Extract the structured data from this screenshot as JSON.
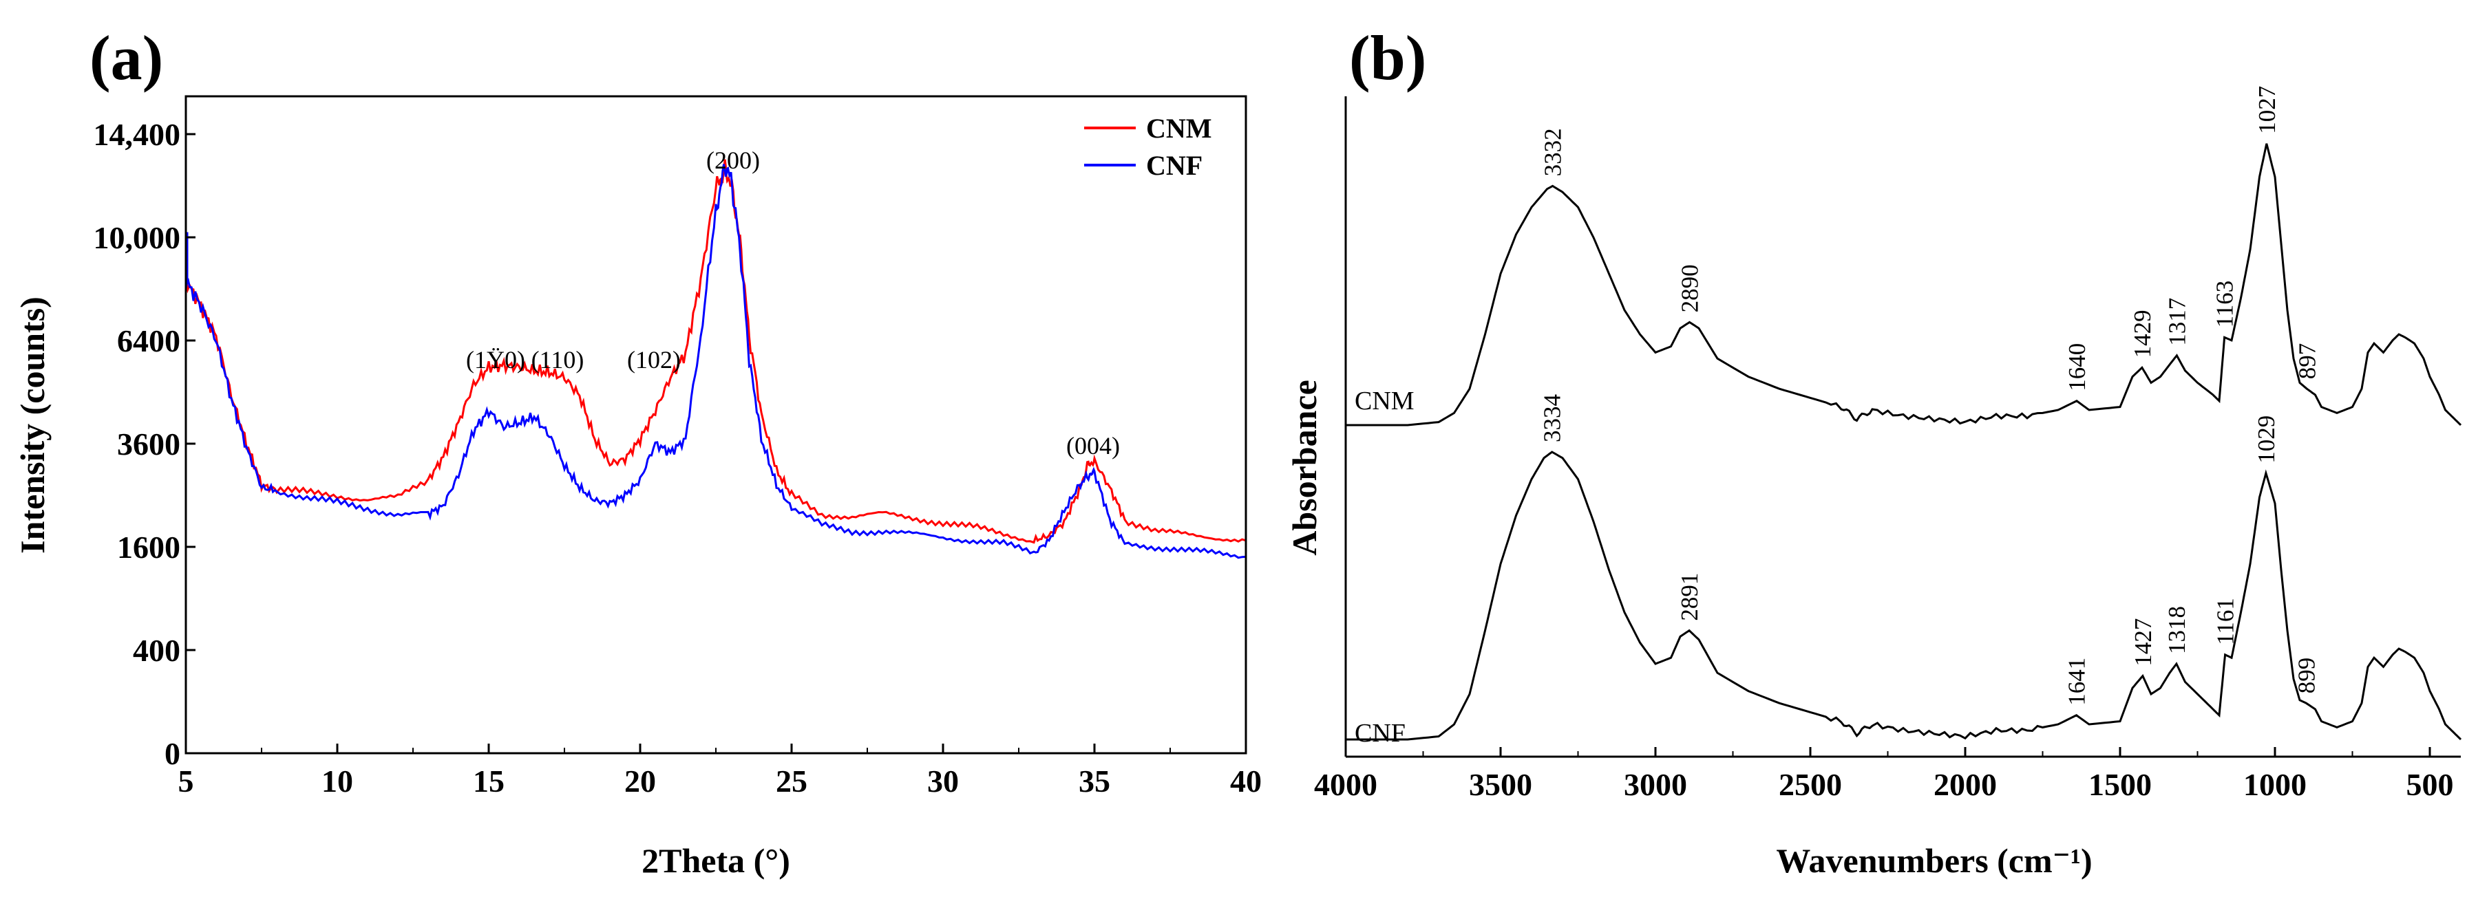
{
  "chart_data": [
    {
      "panel_label": "(a)",
      "type": "line",
      "title": "",
      "xlabel": "2Theta (°)",
      "ylabel": "Intensity (counts)",
      "xlim": [
        5,
        40
      ],
      "x_ticks": [
        5,
        10,
        15,
        20,
        25,
        30,
        35,
        40
      ],
      "y_scale": "sqrt",
      "y_ticks": [
        0,
        400,
        1600,
        3600,
        6400,
        10000,
        14400
      ],
      "y_tick_labels": [
        "0",
        "400",
        "1600",
        "3600",
        "6400",
        "10,000",
        "14,400"
      ],
      "grid": false,
      "legend_position": "top-right",
      "series": [
        {
          "name": "CNM",
          "color": "#ff0000",
          "x": [
            5,
            5.5,
            6,
            6.5,
            7,
            7.5,
            8,
            9,
            10,
            11,
            12,
            13,
            13.5,
            14,
            14.5,
            15,
            15.5,
            16,
            16.5,
            17,
            17.5,
            18,
            18.5,
            19,
            19.5,
            20,
            20.5,
            21,
            21.5,
            22,
            22.5,
            22.8,
            23,
            23.3,
            23.6,
            24,
            24.5,
            25,
            26,
            27,
            28,
            29,
            30,
            31,
            32,
            33,
            33.5,
            34,
            34.5,
            34.8,
            35,
            35.5,
            36,
            37,
            38,
            39,
            40
          ],
          "y": [
            8400,
            7500,
            6500,
            4800,
            3600,
            2700,
            2600,
            2550,
            2500,
            2420,
            2450,
            2800,
            3300,
            4100,
            5100,
            5600,
            5650,
            5600,
            5500,
            5450,
            5300,
            4800,
            3700,
            3150,
            3250,
            3700,
            4400,
            5300,
            6000,
            8400,
            12000,
            12800,
            12200,
            9800,
            6500,
            4300,
            3000,
            2500,
            2150,
            2100,
            2150,
            2080,
            2000,
            1920,
            1800,
            1700,
            1780,
            2000,
            2600,
            3150,
            3200,
            2650,
            2050,
            1850,
            1800,
            1750,
            1700
          ]
        },
        {
          "name": "CNF",
          "color": "#0000ff",
          "x": [
            5,
            5.5,
            6,
            6.5,
            7,
            7.5,
            8,
            9,
            10,
            11,
            12,
            13,
            13.5,
            14,
            14.5,
            15,
            15.5,
            16,
            16.5,
            17,
            17.5,
            18,
            18.5,
            19,
            19.5,
            20,
            20.5,
            21,
            21.5,
            22,
            22.5,
            22.8,
            23,
            23.3,
            23.6,
            24,
            24.5,
            25,
            26,
            27,
            28,
            29,
            30,
            31,
            32,
            33,
            33.5,
            34,
            34.5,
            34.8,
            35,
            35.5,
            36,
            37,
            38,
            39,
            40
          ],
          "y": [
            8400,
            7500,
            6400,
            4700,
            3500,
            2650,
            2600,
            2450,
            2350,
            2250,
            2150,
            2150,
            2300,
            2900,
            3900,
            4400,
            4000,
            4100,
            4250,
            3800,
            3100,
            2650,
            2400,
            2350,
            2500,
            2800,
            3600,
            3400,
            3700,
            6400,
            11000,
            13000,
            12400,
            9500,
            5800,
            3700,
            2700,
            2250,
            1950,
            1850,
            1850,
            1800,
            1750,
            1700,
            1650,
            1500,
            1700,
            2200,
            2700,
            2900,
            2950,
            2050,
            1650,
            1600,
            1550,
            1500,
            1450
          ]
        }
      ],
      "annotations": [
        "(1Ÿ0)",
        "(110)",
        "(102)",
        "(200)",
        "(004)"
      ]
    },
    {
      "panel_label": "(b)",
      "type": "line",
      "title": "",
      "xlabel": "Wavenumbers (cm⁻¹)",
      "ylabel": "Absorbance",
      "xlim": [
        4000,
        400
      ],
      "x_ticks": [
        4000,
        3500,
        3000,
        2500,
        2000,
        1500,
        1000,
        500
      ],
      "y_scale": "arbitrary",
      "grid": false,
      "series": [
        {
          "name": "CNM",
          "color": "#000000",
          "x": [
            4000,
            3800,
            3700,
            3650,
            3600,
            3550,
            3500,
            3450,
            3400,
            3350,
            3332,
            3300,
            3250,
            3200,
            3150,
            3100,
            3050,
            3000,
            2950,
            2920,
            2890,
            2860,
            2800,
            2700,
            2600,
            2500,
            2400,
            2350,
            2300,
            2200,
            2100,
            2000,
            1900,
            1800,
            1700,
            1640,
            1600,
            1500,
            1460,
            1429,
            1400,
            1370,
            1340,
            1317,
            1290,
            1250,
            1200,
            1180,
            1163,
            1140,
            1110,
            1080,
            1050,
            1027,
            1000,
            980,
            960,
            940,
            920,
            897,
            870,
            850,
            800,
            750,
            720,
            700,
            680,
            650,
            620,
            600,
            580,
            550,
            520,
            500,
            470,
            450,
            420,
            400
          ],
          "y": [
            0.0,
            0.0,
            0.01,
            0.04,
            0.12,
            0.3,
            0.5,
            0.63,
            0.72,
            0.78,
            0.79,
            0.77,
            0.72,
            0.62,
            0.5,
            0.38,
            0.3,
            0.24,
            0.26,
            0.32,
            0.34,
            0.32,
            0.22,
            0.16,
            0.12,
            0.09,
            0.06,
            0.02,
            0.05,
            0.03,
            0.02,
            0.01,
            0.03,
            0.03,
            0.05,
            0.08,
            0.05,
            0.06,
            0.16,
            0.19,
            0.14,
            0.16,
            0.2,
            0.23,
            0.18,
            0.14,
            0.1,
            0.08,
            0.29,
            0.28,
            0.42,
            0.58,
            0.82,
            0.93,
            0.82,
            0.6,
            0.38,
            0.22,
            0.14,
            0.12,
            0.1,
            0.06,
            0.04,
            0.06,
            0.12,
            0.24,
            0.27,
            0.24,
            0.28,
            0.3,
            0.29,
            0.27,
            0.22,
            0.16,
            0.1,
            0.05,
            0.02,
            0.0
          ]
        },
        {
          "name": "CNF",
          "color": "#000000",
          "x": [
            4000,
            3800,
            3700,
            3650,
            3600,
            3550,
            3500,
            3450,
            3400,
            3360,
            3334,
            3300,
            3250,
            3200,
            3150,
            3100,
            3050,
            3000,
            2950,
            2920,
            2891,
            2860,
            2800,
            2700,
            2600,
            2500,
            2400,
            2350,
            2300,
            2200,
            2100,
            2000,
            1900,
            1800,
            1700,
            1641,
            1600,
            1500,
            1460,
            1427,
            1400,
            1370,
            1340,
            1318,
            1290,
            1250,
            1200,
            1180,
            1161,
            1140,
            1110,
            1080,
            1050,
            1029,
            1000,
            980,
            960,
            940,
            920,
            899,
            870,
            850,
            800,
            750,
            720,
            700,
            680,
            650,
            620,
            600,
            580,
            550,
            520,
            500,
            470,
            450,
            420,
            400
          ],
          "y": [
            0.0,
            0.0,
            0.01,
            0.05,
            0.15,
            0.36,
            0.58,
            0.74,
            0.86,
            0.93,
            0.95,
            0.93,
            0.86,
            0.72,
            0.56,
            0.42,
            0.32,
            0.25,
            0.27,
            0.34,
            0.36,
            0.33,
            0.22,
            0.16,
            0.12,
            0.09,
            0.06,
            0.02,
            0.05,
            0.03,
            0.02,
            0.01,
            0.03,
            0.03,
            0.05,
            0.08,
            0.05,
            0.06,
            0.17,
            0.21,
            0.15,
            0.17,
            0.22,
            0.25,
            0.19,
            0.15,
            0.1,
            0.08,
            0.28,
            0.27,
            0.42,
            0.58,
            0.8,
            0.88,
            0.78,
            0.56,
            0.36,
            0.2,
            0.13,
            0.12,
            0.1,
            0.06,
            0.04,
            0.06,
            0.12,
            0.24,
            0.27,
            0.24,
            0.28,
            0.3,
            0.29,
            0.27,
            0.22,
            0.16,
            0.1,
            0.05,
            0.02,
            0.0
          ]
        }
      ],
      "peak_labels": {
        "CNM": [
          "3332",
          "2890",
          "1640",
          "1429",
          "1317",
          "1163",
          "1027",
          "897"
        ],
        "CNF": [
          "3334",
          "2891",
          "1641",
          "1427",
          "1318",
          "1161",
          "1029",
          "899"
        ]
      },
      "sample_labels": [
        "CNM",
        "CNF"
      ]
    }
  ]
}
